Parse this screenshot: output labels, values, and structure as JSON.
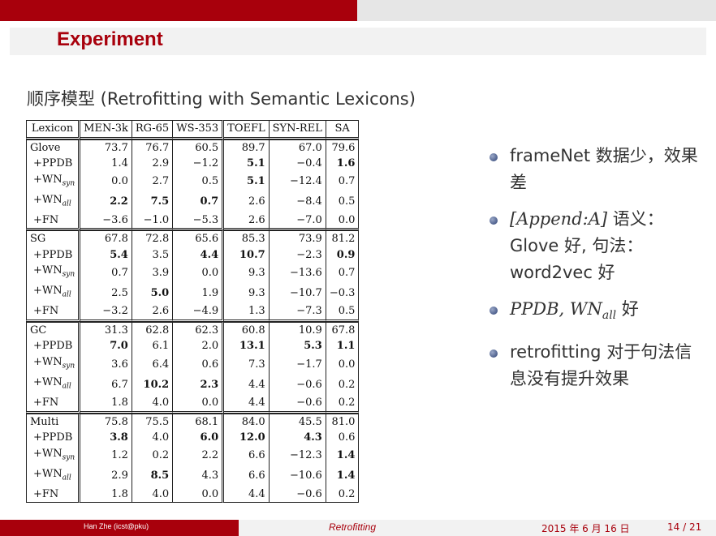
{
  "header": {
    "title": "Experiment"
  },
  "subtitle": "顺序模型 (Retrofitting with Semantic Lexicons)",
  "table": {
    "columns": [
      "Lexicon",
      "MEN-3k",
      "RG-65",
      "WS-353",
      "TOEFL",
      "SYN-REL",
      "SA"
    ],
    "rows": [
      {
        "label": "Glove",
        "sub": "",
        "values": [
          "73.7",
          "76.7",
          "60.5",
          "89.7",
          "67.0",
          "79.6"
        ],
        "bold": [
          false,
          false,
          false,
          false,
          false,
          false
        ]
      },
      {
        "label": "+PPDB",
        "sub": "",
        "values": [
          "1.4",
          "2.9",
          "−1.2",
          "5.1",
          "−0.4",
          "1.6"
        ],
        "bold": [
          false,
          false,
          false,
          true,
          false,
          true
        ]
      },
      {
        "label": "+WN",
        "sub": "syn",
        "values": [
          "0.0",
          "2.7",
          "0.5",
          "5.1",
          "−12.4",
          "0.7"
        ],
        "bold": [
          false,
          false,
          false,
          true,
          false,
          false
        ]
      },
      {
        "label": "+WN",
        "sub": "all",
        "values": [
          "2.2",
          "7.5",
          "0.7",
          "2.6",
          "−8.4",
          "0.5"
        ],
        "bold": [
          true,
          true,
          true,
          false,
          false,
          false
        ]
      },
      {
        "label": "+FN",
        "sub": "",
        "values": [
          "−3.6",
          "−1.0",
          "−5.3",
          "2.6",
          "−7.0",
          "0.0"
        ],
        "bold": [
          false,
          false,
          false,
          false,
          false,
          false
        ]
      },
      {
        "label": "SG",
        "sub": "",
        "values": [
          "67.8",
          "72.8",
          "65.6",
          "85.3",
          "73.9",
          "81.2"
        ],
        "bold": [
          false,
          false,
          false,
          false,
          false,
          false
        ]
      },
      {
        "label": "+PPDB",
        "sub": "",
        "values": [
          "5.4",
          "3.5",
          "4.4",
          "10.7",
          "−2.3",
          "0.9"
        ],
        "bold": [
          true,
          false,
          true,
          true,
          false,
          true
        ]
      },
      {
        "label": "+WN",
        "sub": "syn",
        "values": [
          "0.7",
          "3.9",
          "0.0",
          "9.3",
          "−13.6",
          "0.7"
        ],
        "bold": [
          false,
          false,
          false,
          false,
          false,
          false
        ]
      },
      {
        "label": "+WN",
        "sub": "all",
        "values": [
          "2.5",
          "5.0",
          "1.9",
          "9.3",
          "−10.7",
          "−0.3"
        ],
        "bold": [
          false,
          true,
          false,
          false,
          false,
          false
        ]
      },
      {
        "label": "+FN",
        "sub": "",
        "values": [
          "−3.2",
          "2.6",
          "−4.9",
          "1.3",
          "−7.3",
          "0.5"
        ],
        "bold": [
          false,
          false,
          false,
          false,
          false,
          false
        ]
      },
      {
        "label": "GC",
        "sub": "",
        "values": [
          "31.3",
          "62.8",
          "62.3",
          "60.8",
          "10.9",
          "67.8"
        ],
        "bold": [
          false,
          false,
          false,
          false,
          false,
          false
        ]
      },
      {
        "label": "+PPDB",
        "sub": "",
        "values": [
          "7.0",
          "6.1",
          "2.0",
          "13.1",
          "5.3",
          "1.1"
        ],
        "bold": [
          true,
          false,
          false,
          true,
          true,
          true
        ]
      },
      {
        "label": "+WN",
        "sub": "syn",
        "values": [
          "3.6",
          "6.4",
          "0.6",
          "7.3",
          "−1.7",
          "0.0"
        ],
        "bold": [
          false,
          false,
          false,
          false,
          false,
          false
        ]
      },
      {
        "label": "+WN",
        "sub": "all",
        "values": [
          "6.7",
          "10.2",
          "2.3",
          "4.4",
          "−0.6",
          "0.2"
        ],
        "bold": [
          false,
          true,
          true,
          false,
          false,
          false
        ]
      },
      {
        "label": "+FN",
        "sub": "",
        "values": [
          "1.8",
          "4.0",
          "0.0",
          "4.4",
          "−0.6",
          "0.2"
        ],
        "bold": [
          false,
          false,
          false,
          false,
          false,
          false
        ]
      },
      {
        "label": "Multi",
        "sub": "",
        "values": [
          "75.8",
          "75.5",
          "68.1",
          "84.0",
          "45.5",
          "81.0"
        ],
        "bold": [
          false,
          false,
          false,
          false,
          false,
          false
        ]
      },
      {
        "label": "+PPDB",
        "sub": "",
        "values": [
          "3.8",
          "4.0",
          "6.0",
          "12.0",
          "4.3",
          "0.6"
        ],
        "bold": [
          true,
          false,
          true,
          true,
          true,
          false
        ]
      },
      {
        "label": "+WN",
        "sub": "syn",
        "values": [
          "1.2",
          "0.2",
          "2.2",
          "6.6",
          "−12.3",
          "1.4"
        ],
        "bold": [
          false,
          false,
          false,
          false,
          false,
          true
        ]
      },
      {
        "label": "+WN",
        "sub": "all",
        "values": [
          "2.9",
          "8.5",
          "4.3",
          "6.6",
          "−10.6",
          "1.4"
        ],
        "bold": [
          false,
          true,
          false,
          false,
          false,
          true
        ]
      },
      {
        "label": "+FN",
        "sub": "",
        "values": [
          "1.8",
          "4.0",
          "0.0",
          "4.4",
          "−0.6",
          "0.2"
        ],
        "bold": [
          false,
          false,
          false,
          false,
          false,
          false
        ]
      }
    ]
  },
  "bullets": [
    {
      "parts": [
        {
          "t": "frameNet 数据少，效果差",
          "i": false
        }
      ]
    },
    {
      "parts": [
        {
          "t": "[Append:A]",
          "i": true
        },
        {
          "t": " 语义：Glove 好, 句法：word2vec 好",
          "i": false
        }
      ]
    },
    {
      "parts": [
        {
          "t": "PPDB, WN",
          "i": true
        },
        {
          "t": "all",
          "i": true,
          "sub": true
        },
        {
          "t": " 好",
          "i": false
        }
      ]
    },
    {
      "parts": [
        {
          "t": "retrofitting 对于句法信息没有提升效果",
          "i": false
        }
      ]
    }
  ],
  "footer": {
    "author": "Han Zhe  (icst@pku)",
    "short_title": "Retrofitting",
    "date": "2015 年 6 月 16 日",
    "page": "14 / 21"
  },
  "colors": {
    "accent": "#a8000c",
    "bar_gray": "#e6e6e6",
    "bullet_blue": "#2b3f72"
  }
}
